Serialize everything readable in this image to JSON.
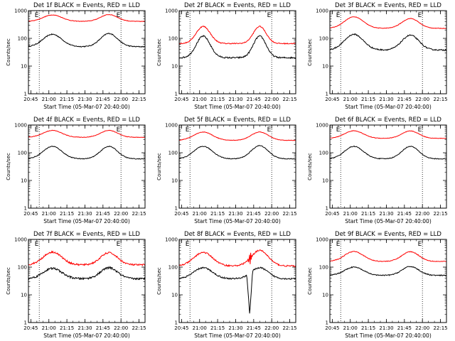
{
  "chart_data": [
    {
      "type": "line",
      "title": "Det 1f BLACK = Events, RED = LLD",
      "xlabel": "Start Time (05-Mar-07 20:40:00)",
      "ylabel": "Counts/sec",
      "y_scale": "log",
      "ylim": [
        1,
        1000
      ],
      "x_ticks": [
        "20:45",
        "21:00",
        "21:15",
        "21:30",
        "21:45",
        "22:00",
        "22:15"
      ],
      "y_ticks": [
        "1",
        "10",
        "100",
        "1000"
      ],
      "markers": [
        {
          "label": "E",
          "time": "20:52"
        },
        {
          "label": "E",
          "time": "22:00"
        }
      ],
      "series": [
        {
          "color": "#000000",
          "base": 50,
          "peaks": [
            140,
            150
          ],
          "bump": 1.0,
          "noise": 0.04
        },
        {
          "color": "#ff0000",
          "base": 410,
          "peaks": [
            700,
            720
          ],
          "bump": 1.0,
          "noise": 0.02
        }
      ]
    },
    {
      "type": "line",
      "title": "Det 2f BLACK = Events, RED = LLD",
      "xlabel": "Start Time (05-Mar-07 20:40:00)",
      "ylabel": "Counts/sec",
      "y_scale": "log",
      "ylim": [
        1,
        1000
      ],
      "x_ticks": [
        "20:45",
        "21:00",
        "21:15",
        "21:30",
        "21:45",
        "22:00",
        "22:15"
      ],
      "y_ticks": [
        "1",
        "10",
        "100",
        "1000"
      ],
      "markers": [
        {
          "label": "E",
          "time": "20:52"
        },
        {
          "label": "E",
          "time": "22:00"
        }
      ],
      "series": [
        {
          "color": "#000000",
          "base": 20,
          "peaks": [
            120,
            120
          ],
          "bump": 0.75,
          "noise": 0.06
        },
        {
          "color": "#ff0000",
          "base": 65,
          "peaks": [
            270,
            270
          ],
          "bump": 0.75,
          "noise": 0.04
        }
      ]
    },
    {
      "type": "line",
      "title": "Det 3f BLACK = Events, RED = LLD",
      "xlabel": "Start Time (05-Mar-07 20:40:00)",
      "ylabel": "Counts/sec",
      "y_scale": "log",
      "ylim": [
        1,
        1000
      ],
      "x_ticks": [
        "20:45",
        "21:00",
        "21:15",
        "21:30",
        "21:45",
        "22:00",
        "22:15"
      ],
      "y_ticks": [
        "1",
        "10",
        "100",
        "1000"
      ],
      "markers": [
        {
          "label": "E",
          "time": "20:52"
        },
        {
          "label": "E",
          "time": "22:00"
        }
      ],
      "series": [
        {
          "color": "#000000",
          "base": 38,
          "peaks": [
            140,
            130
          ],
          "bump": 1.0,
          "noise": 0.05
        },
        {
          "color": "#ff0000",
          "base": 230,
          "peaks": [
            600,
            520
          ],
          "bump": 1.0,
          "noise": 0.02
        }
      ]
    },
    {
      "type": "line",
      "title": "Det 4f BLACK = Events, RED = LLD",
      "xlabel": "Start Time (05-Mar-07 20:40:00)",
      "ylabel": "Counts/sec",
      "y_scale": "log",
      "ylim": [
        1,
        1000
      ],
      "x_ticks": [
        "20:45",
        "21:00",
        "21:15",
        "21:30",
        "21:45",
        "22:00",
        "22:15"
      ],
      "y_ticks": [
        "1",
        "10",
        "100",
        "1000"
      ],
      "markers": [
        {
          "label": "E",
          "time": "20:52"
        },
        {
          "label": "E",
          "time": "22:00"
        }
      ],
      "series": [
        {
          "color": "#000000",
          "base": 60,
          "peaks": [
            170,
            170
          ],
          "bump": 1.0,
          "noise": 0.03
        },
        {
          "color": "#ff0000",
          "base": 360,
          "peaks": [
            640,
            640
          ],
          "bump": 1.0,
          "noise": 0.02
        }
      ]
    },
    {
      "type": "line",
      "title": "Det 5f BLACK = Events, RED = LLD",
      "xlabel": "Start Time (05-Mar-07 20:40:00)",
      "ylabel": "Counts/sec",
      "y_scale": "log",
      "ylim": [
        1,
        1000
      ],
      "x_ticks": [
        "20:45",
        "21:00",
        "21:15",
        "21:30",
        "21:45",
        "22:00",
        "22:15"
      ],
      "y_ticks": [
        "1",
        "10",
        "100",
        "1000"
      ],
      "markers": [
        {
          "label": "E",
          "time": "20:52"
        },
        {
          "label": "E",
          "time": "22:00"
        }
      ],
      "series": [
        {
          "color": "#000000",
          "base": 60,
          "peaks": [
            170,
            180
          ],
          "bump": 1.0,
          "noise": 0.03
        },
        {
          "color": "#ff0000",
          "base": 280,
          "peaks": [
            560,
            560
          ],
          "bump": 1.0,
          "noise": 0.02
        }
      ]
    },
    {
      "type": "line",
      "title": "Det 6f BLACK = Events, RED = LLD",
      "xlabel": "Start Time (05-Mar-07 20:40:00)",
      "ylabel": "Counts/sec",
      "y_scale": "log",
      "ylim": [
        1,
        1000
      ],
      "x_ticks": [
        "20:45",
        "21:00",
        "21:15",
        "21:30",
        "21:45",
        "22:00",
        "22:15"
      ],
      "y_ticks": [
        "1",
        "10",
        "100",
        "1000"
      ],
      "markers": [
        {
          "label": "E",
          "time": "20:52"
        },
        {
          "label": "E",
          "time": "22:00"
        }
      ],
      "series": [
        {
          "color": "#000000",
          "base": 60,
          "peaks": [
            170,
            170
          ],
          "bump": 1.0,
          "noise": 0.03
        },
        {
          "color": "#ff0000",
          "base": 330,
          "peaks": [
            620,
            610
          ],
          "bump": 1.0,
          "noise": 0.02
        }
      ]
    },
    {
      "type": "line",
      "title": "Det 7f BLACK = Events, RED = LLD",
      "xlabel": "Start Time (05-Mar-07 20:40:00)",
      "ylabel": "Counts/sec",
      "y_scale": "log",
      "ylim": [
        1,
        1000
      ],
      "x_ticks": [
        "20:45",
        "21:00",
        "21:15",
        "21:30",
        "21:45",
        "22:00",
        "22:15"
      ],
      "y_ticks": [
        "1",
        "10",
        "100",
        "1000"
      ],
      "markers": [
        {
          "label": "E",
          "time": "20:52"
        },
        {
          "label": "E",
          "time": "22:00"
        }
      ],
      "series": [
        {
          "color": "#000000",
          "base": 38,
          "peaks": [
            90,
            95
          ],
          "bump": 1.0,
          "noise": 0.08
        },
        {
          "color": "#ff0000",
          "base": 120,
          "peaks": [
            350,
            330
          ],
          "bump": 1.0,
          "noise": 0.07
        }
      ]
    },
    {
      "type": "line",
      "title": "Det 8f BLACK = Events, RED = LLD",
      "xlabel": "Start Time (05-Mar-07 20:40:00)",
      "ylabel": "Counts/sec",
      "y_scale": "log",
      "ylim": [
        1,
        1000
      ],
      "x_ticks": [
        "20:45",
        "21:00",
        "21:15",
        "21:30",
        "21:45",
        "22:00",
        "22:15"
      ],
      "y_ticks": [
        "1",
        "10",
        "100",
        "1000"
      ],
      "markers": [
        {
          "label": "E",
          "time": "20:52"
        },
        {
          "label": "E",
          "time": "22:00"
        }
      ],
      "series": [
        {
          "color": "#000000",
          "base": 38,
          "peaks": [
            95,
            95
          ],
          "bump": 1.0,
          "noise": 0.06,
          "gap": {
            "start": 0.58,
            "end": 0.63,
            "min": 2
          }
        },
        {
          "color": "#ff0000",
          "base": 110,
          "peaks": [
            340,
            400
          ],
          "bump": 1.0,
          "noise": 0.06,
          "gap": {
            "start": 0.58,
            "end": 0.63,
            "min": 0
          }
        }
      ]
    },
    {
      "type": "line",
      "title": "Det 9f BLACK = Events, RED = LLD",
      "xlabel": "Start Time (05-Mar-07 20:40:00)",
      "ylabel": "Counts/sec",
      "y_scale": "log",
      "ylim": [
        1,
        1000
      ],
      "x_ticks": [
        "20:45",
        "21:00",
        "21:15",
        "21:30",
        "21:45",
        "22:00",
        "22:15"
      ],
      "y_ticks": [
        "1",
        "10",
        "100",
        "1000"
      ],
      "markers": [
        {
          "label": "E",
          "time": "20:52"
        },
        {
          "label": "E",
          "time": "22:00"
        }
      ],
      "series": [
        {
          "color": "#000000",
          "base": 50,
          "peaks": [
            100,
            105
          ],
          "bump": 1.0,
          "noise": 0.04
        },
        {
          "color": "#ff0000",
          "base": 160,
          "peaks": [
            370,
            360
          ],
          "bump": 1.0,
          "noise": 0.03
        }
      ]
    }
  ]
}
